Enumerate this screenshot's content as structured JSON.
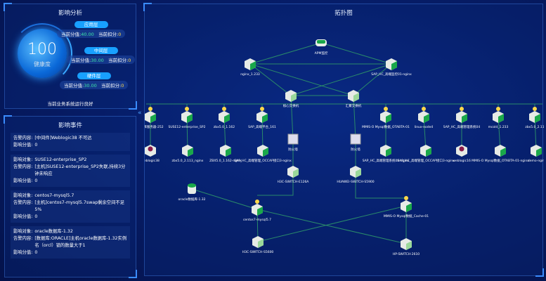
{
  "impact": {
    "title": "影响分析",
    "score": "100",
    "score_label": "健康度",
    "status": "当前业务系统运行良好",
    "layers": [
      {
        "name": "应用层",
        "score_label": "当前分值:",
        "score": "40.00",
        "deduct_label": "当前扣分:",
        "deduct": "0"
      },
      {
        "name": "中间层",
        "score_label": "当前分值:",
        "score": "30.00",
        "deduct_label": "当前扣分:",
        "deduct": "0"
      },
      {
        "name": "硬件层",
        "score_label": "当前分值:",
        "score": "30.00",
        "deduct_label": "当前扣分:",
        "deduct": "0"
      }
    ]
  },
  "events": {
    "title": "影响事件",
    "items": [
      {
        "rows": [
          [
            "告警内容:",
            "[中间件]Weblogic38 不可达"
          ],
          [
            "影响分值:",
            "0"
          ]
        ]
      },
      {
        "rows": [
          [
            "影响对象:",
            "SUSE12-enterprise_SP2"
          ],
          [
            "告警内容:",
            "[主机]SUSE12-enterprise_SP2失联,持续3分钟未响应"
          ],
          [
            "影响分值:",
            "0"
          ]
        ]
      },
      {
        "rows": [
          [
            "影响对象:",
            "centos7-mysql5.7"
          ],
          [
            "告警内容:",
            "[主机]centos7-mysql5.7swap剩余空间不足5%"
          ],
          [
            "影响分值:",
            "0"
          ]
        ]
      },
      {
        "rows": [
          [
            "影响对象:",
            "oracle数据库-1.32"
          ],
          [
            "告警内容:",
            "[数据库:ORACLE]主机oracle数据库-1.32实例名（orcl）锁的数量大于1"
          ],
          [
            "影响分值:",
            "0"
          ]
        ]
      }
    ]
  },
  "topology": {
    "title": "拓扑图",
    "nodes": [
      {
        "id": "apm",
        "label": "APM监控",
        "type": "apm"
      },
      {
        "id": "n1",
        "label": "nginx_1.233",
        "type": "nginx"
      },
      {
        "id": "n2",
        "label": "SAP_HC_高端监控01-nginx",
        "type": "nginx"
      },
      {
        "id": "s1",
        "label": "核心交换机",
        "type": "switch"
      },
      {
        "id": "s2",
        "label": "汇聚交换机",
        "type": "switch"
      },
      {
        "id": "h1",
        "label": "数据库服务器-252",
        "type": "host"
      },
      {
        "id": "h2",
        "label": "SUSE12-enterprise_SP2",
        "type": "host"
      },
      {
        "id": "h3",
        "label": "zbx5.0_1.162",
        "type": "host"
      },
      {
        "id": "h4",
        "label": "SAP_高端平台_161",
        "type": "host"
      },
      {
        "id": "h5",
        "label": "MMIS-O Mysql数据_OTABTA-01",
        "type": "host"
      },
      {
        "id": "h6",
        "label": "linux-node4",
        "type": "host"
      },
      {
        "id": "h7",
        "label": "SAP_HC_高端管理系统04",
        "type": "host"
      },
      {
        "id": "h8",
        "label": "mcold_1.233",
        "type": "host"
      },
      {
        "id": "h9",
        "label": "zbx5.0_2.11",
        "type": "host"
      },
      {
        "id": "a1",
        "label": "weblogic38",
        "type": "weblogic"
      },
      {
        "id": "a2",
        "label": "zbx5.0_2.113_nginx",
        "type": "nginx"
      },
      {
        "id": "a3",
        "label": "ZBX5.0_1.162-nginx",
        "type": "nginx"
      },
      {
        "id": "a4",
        "label": "SAP_HC_高端管理_OCCAP接口3-nginx",
        "type": "nginx"
      },
      {
        "id": "a5",
        "label": "SAP_HC_高端管理系统04-nginx",
        "type": "nginx"
      },
      {
        "id": "a6",
        "label": "SAP_HC_高端管理_OCCAP接口3-nginx",
        "type": "nginx"
      },
      {
        "id": "a7",
        "label": "weblogic16",
        "type": "weblogic"
      },
      {
        "id": "a8",
        "label": "MMIS-O Mysql数据_OTABTA-01-nginx",
        "type": "nginx"
      },
      {
        "id": "a9",
        "label": "demo-ngin",
        "type": "nginx"
      },
      {
        "id": "f1",
        "label": "防火墙",
        "type": "firewall"
      },
      {
        "id": "f2",
        "label": "防火墙",
        "type": "firewall"
      },
      {
        "id": "w1",
        "label": "H3C-SWITCH-E126A",
        "type": "switch"
      },
      {
        "id": "w2",
        "label": "HUAWEI-SWITCH-S5900",
        "type": "switch"
      },
      {
        "id": "db",
        "label": "oracle数据库-1.32",
        "type": "db"
      },
      {
        "id": "c1",
        "label": "centos7-mysql5.7",
        "type": "host"
      },
      {
        "id": "c2",
        "label": "MMIS-O Mysql数据_Cache-01",
        "type": "host"
      },
      {
        "id": "w3",
        "label": "H3C-SWITCH-S5600",
        "type": "switch"
      },
      {
        "id": "w4",
        "label": "HP-SWITCH-2610",
        "type": "switch"
      }
    ]
  },
  "colors": {
    "accent": "#18a0ff",
    "link": "#2a8a6a",
    "node_green": "#1aa84a",
    "warn": "#ffd84a",
    "weblogic": "#8a1a4a"
  }
}
